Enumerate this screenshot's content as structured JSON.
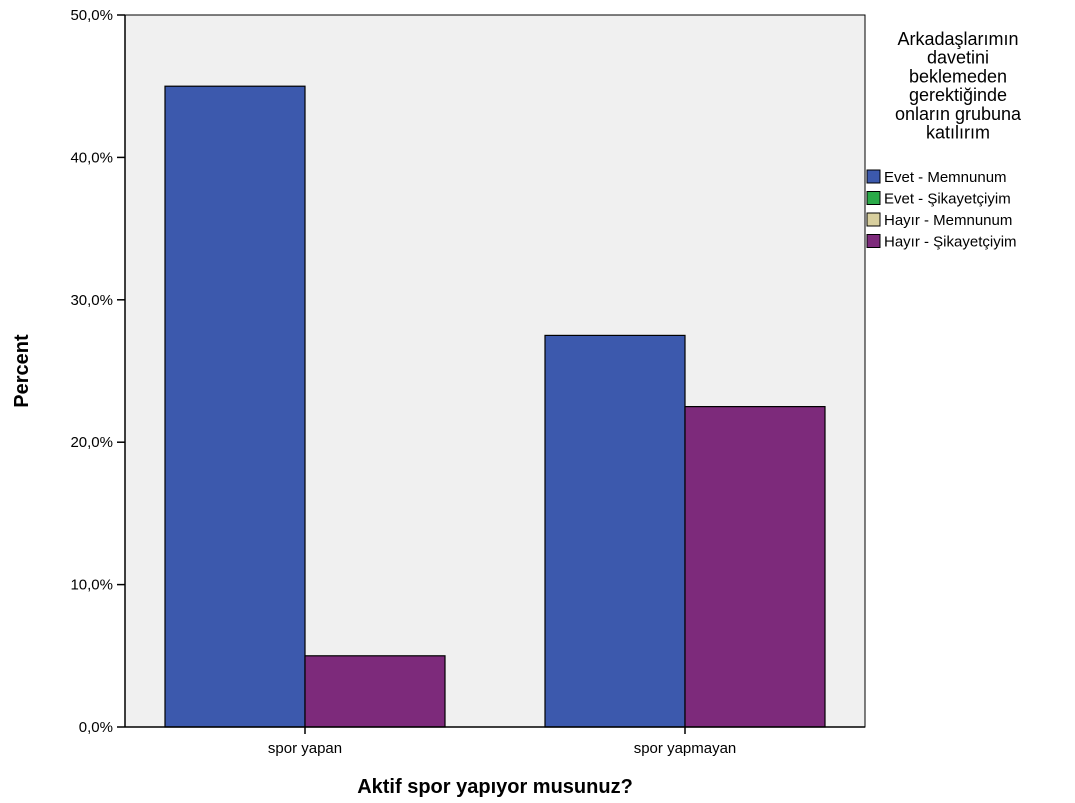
{
  "chart_data": {
    "type": "bar",
    "xlabel": "Aktif spor yapıyor musunuz?",
    "ylabel": "Percent",
    "ylim": [
      0,
      50
    ],
    "yticks": [
      "0,0%",
      "10,0%",
      "20,0%",
      "30,0%",
      "40,0%",
      "50,0%"
    ],
    "categories": [
      "spor yapan",
      "spor yapmayan"
    ],
    "legend_title": [
      "Arkadaşlarımın",
      "davetini",
      "beklemeden",
      "gerektiğinde",
      "onların grubuna",
      "katılırım"
    ],
    "legend_position": "right",
    "series": [
      {
        "name": "Evet - Memnunum",
        "color": "#3c59ad",
        "values": [
          45.0,
          27.5
        ]
      },
      {
        "name": "Evet - Şikayetçiyim",
        "color": "#2aaa48",
        "values": [
          0,
          0
        ]
      },
      {
        "name": "Hayır - Memnunum",
        "color": "#d8cf9e",
        "values": [
          0,
          0
        ]
      },
      {
        "name": "Hayır - Şikayetçiyim",
        "color": "#7d2a7b",
        "values": [
          5.0,
          22.5
        ]
      }
    ],
    "plot_background": "#f0f0f0",
    "grid": false
  }
}
